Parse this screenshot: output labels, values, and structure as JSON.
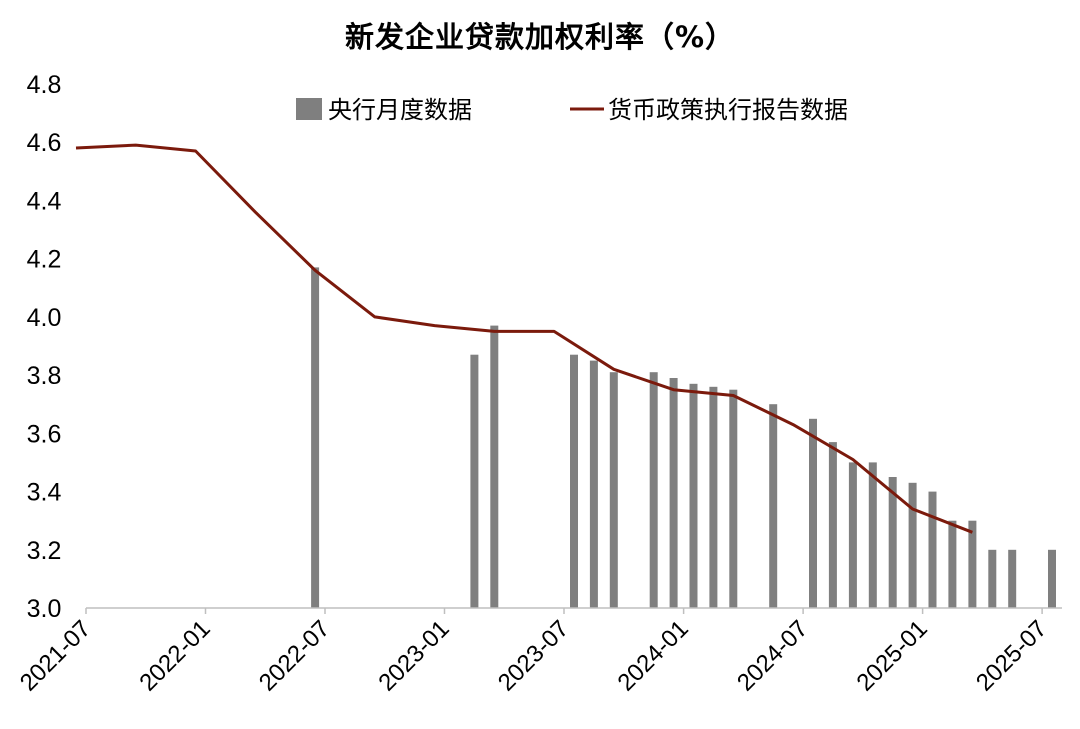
{
  "chart_data": {
    "type": "bar+line",
    "title": "新发企业贷款加权利率（%）",
    "ylim": [
      3.0,
      4.8
    ],
    "yticks": [
      "3.0",
      "3.2",
      "3.4",
      "3.6",
      "3.8",
      "4.0",
      "4.2",
      "4.4",
      "4.6",
      "4.8"
    ],
    "xlim": [
      "2021-07",
      "2025-08"
    ],
    "xticks": [
      "2021-07",
      "2022-01",
      "2022-07",
      "2023-01",
      "2023-07",
      "2024-01",
      "2024-07",
      "2025-01",
      "2025-07"
    ],
    "grid": false,
    "legend_position": "top",
    "series": [
      {
        "name": "央行月度数据",
        "kind": "bar",
        "color": "#7f7f7f",
        "points": [
          {
            "x": "2022-06",
            "y": 4.17
          },
          {
            "x": "2023-02",
            "y": 3.87
          },
          {
            "x": "2023-03",
            "y": 3.97
          },
          {
            "x": "2023-07",
            "y": 3.87
          },
          {
            "x": "2023-08",
            "y": 3.85
          },
          {
            "x": "2023-09",
            "y": 3.81
          },
          {
            "x": "2023-11",
            "y": 3.81
          },
          {
            "x": "2023-12",
            "y": 3.79
          },
          {
            "x": "2024-01",
            "y": 3.77
          },
          {
            "x": "2024-02",
            "y": 3.76
          },
          {
            "x": "2024-03",
            "y": 3.75
          },
          {
            "x": "2024-05",
            "y": 3.7
          },
          {
            "x": "2024-07",
            "y": 3.65
          },
          {
            "x": "2024-08",
            "y": 3.57
          },
          {
            "x": "2024-09",
            "y": 3.5
          },
          {
            "x": "2024-10",
            "y": 3.5
          },
          {
            "x": "2024-11",
            "y": 3.45
          },
          {
            "x": "2024-12",
            "y": 3.43
          },
          {
            "x": "2025-01",
            "y": 3.4
          },
          {
            "x": "2025-02",
            "y": 3.3
          },
          {
            "x": "2025-03",
            "y": 3.3
          },
          {
            "x": "2025-04",
            "y": 3.2
          },
          {
            "x": "2025-05",
            "y": 3.2
          },
          {
            "x": "2025-07",
            "y": 3.2
          }
        ]
      },
      {
        "name": "货币政策执行报告数据",
        "kind": "line",
        "color": "#7b1a0c",
        "points": [
          {
            "x": "2021-06",
            "y": 4.58
          },
          {
            "x": "2021-09",
            "y": 4.59
          },
          {
            "x": "2021-12",
            "y": 4.57
          },
          {
            "x": "2022-03",
            "y": 4.36
          },
          {
            "x": "2022-06",
            "y": 4.16
          },
          {
            "x": "2022-09",
            "y": 4.0
          },
          {
            "x": "2022-12",
            "y": 3.97
          },
          {
            "x": "2023-03",
            "y": 3.95
          },
          {
            "x": "2023-06",
            "y": 3.95
          },
          {
            "x": "2023-09",
            "y": 3.82
          },
          {
            "x": "2023-12",
            "y": 3.75
          },
          {
            "x": "2024-03",
            "y": 3.73
          },
          {
            "x": "2024-06",
            "y": 3.63
          },
          {
            "x": "2024-09",
            "y": 3.51
          },
          {
            "x": "2024-12",
            "y": 3.34
          },
          {
            "x": "2025-03",
            "y": 3.26
          }
        ]
      }
    ]
  }
}
